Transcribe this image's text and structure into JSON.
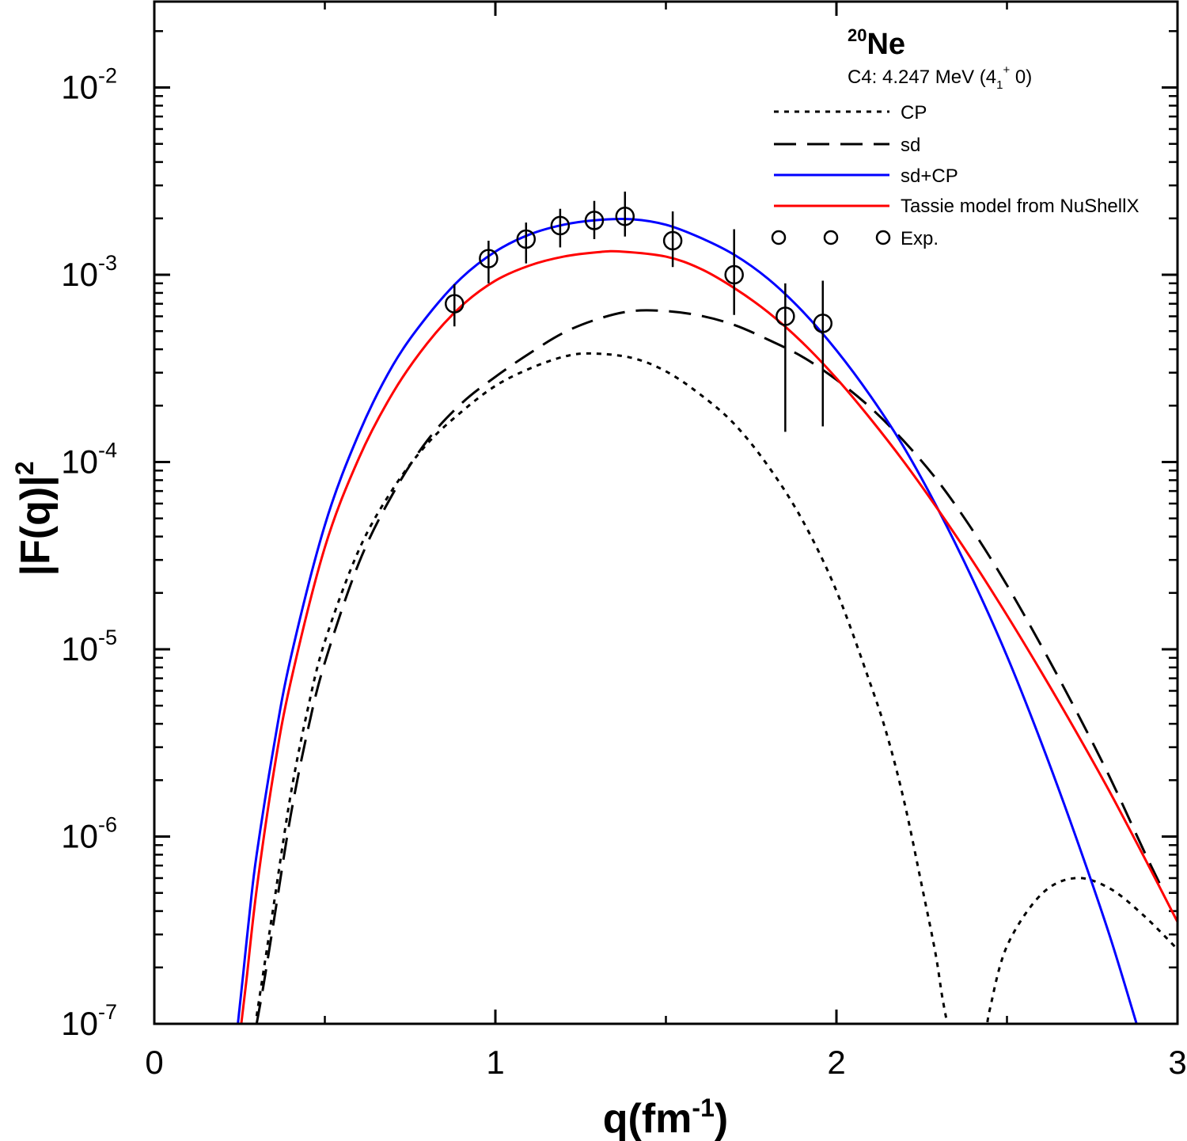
{
  "chart_data": {
    "type": "line",
    "title_nucleus": {
      "mass": "20",
      "symbol": "Ne"
    },
    "subtitle": {
      "prefix": "C4:  4.247 MeV (4",
      "sub": "1",
      "sup": "+",
      "suffix": " 0)"
    },
    "xlabel": {
      "main": "q(fm",
      "sup": "-1",
      "close": ")"
    },
    "ylabel": {
      "main": "|F(q)|",
      "sup": "2"
    },
    "xlim": [
      0,
      3
    ],
    "ylim": [
      1e-07,
      0.03
    ],
    "yscale": "log",
    "xticks": [
      {
        "value": 0,
        "label": "0"
      },
      {
        "value": 1,
        "label": "1"
      },
      {
        "value": 2,
        "label": "2"
      },
      {
        "value": 3,
        "label": "3"
      }
    ],
    "yticks": [
      {
        "exp": -7,
        "base": "10",
        "sup": "-7"
      },
      {
        "exp": -6,
        "base": "10",
        "sup": "-6"
      },
      {
        "exp": -5,
        "base": "10",
        "sup": "-5"
      },
      {
        "exp": -4,
        "base": "10",
        "sup": "-4"
      },
      {
        "exp": -3,
        "base": "10",
        "sup": "-3"
      },
      {
        "exp": -2,
        "base": "10",
        "sup": "-2"
      }
    ],
    "legend_position": "top-right",
    "series": [
      {
        "name": "CP",
        "color": "#000000",
        "style": "dotted",
        "segment_ranges": [
          [
            0.3,
            2.33
          ],
          [
            2.44,
            3.0
          ]
        ],
        "points": [
          [
            0.3,
            1.1e-07
          ],
          [
            0.32,
            1.9e-07
          ],
          [
            0.35,
            4.3e-07
          ],
          [
            0.4,
            1.68e-06
          ],
          [
            0.45,
            4.8e-06
          ],
          [
            0.5,
            1.1e-05
          ],
          [
            0.6,
            3.4e-05
          ],
          [
            0.7,
            7.2e-05
          ],
          [
            0.8,
            0.000125
          ],
          [
            0.9,
            0.000185
          ],
          [
            1.0,
            0.000255
          ],
          [
            1.1,
            0.000315
          ],
          [
            1.2,
            0.000365
          ],
          [
            1.28,
            0.00038
          ],
          [
            1.4,
            0.00036
          ],
          [
            1.5,
            0.000305
          ],
          [
            1.6,
            0.00023
          ],
          [
            1.7,
            0.00016
          ],
          [
            1.8,
            9.5e-05
          ],
          [
            1.9,
            4.9e-05
          ],
          [
            2.0,
            2.05e-05
          ],
          [
            2.1,
            6.5e-06
          ],
          [
            2.15,
            3.4e-06
          ],
          [
            2.2,
            1.5e-06
          ],
          [
            2.25,
            5.5e-07
          ],
          [
            2.29,
            2.4e-07
          ],
          [
            2.31,
            1.4e-07
          ],
          [
            2.33,
            9e-08
          ],
          [
            2.44,
            9e-08
          ],
          [
            2.45,
            1.2e-07
          ],
          [
            2.5,
            2.6e-07
          ],
          [
            2.6,
            4.9e-07
          ],
          [
            2.7,
            6e-07
          ],
          [
            2.8,
            5.3e-07
          ],
          [
            2.9,
            3.8e-07
          ],
          [
            3.0,
            2.5e-07
          ]
        ]
      },
      {
        "name": "sd",
        "color": "#000000",
        "style": "dashed",
        "points": [
          [
            0.3,
            1e-07
          ],
          [
            0.32,
            1.6e-07
          ],
          [
            0.35,
            3.5e-07
          ],
          [
            0.4,
            1.3e-06
          ],
          [
            0.45,
            3.7e-06
          ],
          [
            0.5,
            8.5e-06
          ],
          [
            0.6,
            2.9e-05
          ],
          [
            0.7,
            6.8e-05
          ],
          [
            0.8,
            0.00013
          ],
          [
            0.9,
            0.000205
          ],
          [
            1.0,
            0.000285
          ],
          [
            1.1,
            0.00038
          ],
          [
            1.2,
            0.00049
          ],
          [
            1.3,
            0.00058
          ],
          [
            1.4,
            0.00064
          ],
          [
            1.5,
            0.00064
          ],
          [
            1.6,
            0.000605
          ],
          [
            1.7,
            0.00054
          ],
          [
            1.8,
            0.00045
          ],
          [
            1.9,
            0.000365
          ],
          [
            2.0,
            0.000275
          ],
          [
            2.1,
            0.000195
          ],
          [
            2.2,
            0.000128
          ],
          [
            2.3,
            7.8e-05
          ],
          [
            2.4,
            4.3e-05
          ],
          [
            2.5,
            2.2e-05
          ],
          [
            2.6,
            1.05e-05
          ],
          [
            2.7,
            4.8e-06
          ],
          [
            2.8,
            2.1e-06
          ],
          [
            2.9,
            8.5e-07
          ],
          [
            2.95,
            5.5e-07
          ]
        ]
      },
      {
        "name": "sd+CP",
        "color": "#0000ff",
        "style": "solid",
        "points": [
          [
            0.245,
            1e-07
          ],
          [
            0.26,
            1.8e-07
          ],
          [
            0.28,
            4e-07
          ],
          [
            0.3,
            8e-07
          ],
          [
            0.35,
            3e-06
          ],
          [
            0.4,
            9e-06
          ],
          [
            0.5,
            4.6e-05
          ],
          [
            0.6,
            0.000142
          ],
          [
            0.7,
            0.00033
          ],
          [
            0.8,
            0.0006
          ],
          [
            0.9,
            0.00096
          ],
          [
            1.0,
            0.00133
          ],
          [
            1.1,
            0.00164
          ],
          [
            1.2,
            0.00185
          ],
          [
            1.3,
            0.00196
          ],
          [
            1.4,
            0.00198
          ],
          [
            1.5,
            0.00185
          ],
          [
            1.6,
            0.00158
          ],
          [
            1.7,
            0.00128
          ],
          [
            1.8,
            0.00095
          ],
          [
            1.9,
            0.00064
          ],
          [
            2.0,
            0.000395
          ],
          [
            2.1,
            0.000225
          ],
          [
            2.2,
            0.000118
          ],
          [
            2.3,
            5.5e-05
          ],
          [
            2.4,
            2.35e-05
          ],
          [
            2.5,
            9.2e-06
          ],
          [
            2.6,
            3.2e-06
          ],
          [
            2.7,
            1.02e-06
          ],
          [
            2.8,
            3e-07
          ],
          [
            2.88,
            1e-07
          ]
        ]
      },
      {
        "name": "Tassie model from NuShellX",
        "color": "#ff0000",
        "style": "solid",
        "points": [
          [
            0.255,
            1e-07
          ],
          [
            0.27,
            1.7e-07
          ],
          [
            0.3,
            5.2e-07
          ],
          [
            0.35,
            2.2e-06
          ],
          [
            0.4,
            6.7e-06
          ],
          [
            0.5,
            3.5e-05
          ],
          [
            0.6,
            0.000105
          ],
          [
            0.7,
            0.000235
          ],
          [
            0.8,
            0.00043
          ],
          [
            0.9,
            0.00068
          ],
          [
            1.0,
            0.00093
          ],
          [
            1.1,
            0.00112
          ],
          [
            1.2,
            0.00125
          ],
          [
            1.3,
            0.00132
          ],
          [
            1.37,
            0.00133
          ],
          [
            1.5,
            0.00125
          ],
          [
            1.6,
            0.00108
          ],
          [
            1.7,
            0.00085
          ],
          [
            1.8,
            0.00063
          ],
          [
            1.9,
            0.000435
          ],
          [
            2.0,
            0.00028
          ],
          [
            2.1,
            0.00017
          ],
          [
            2.2,
            9.9e-05
          ],
          [
            2.3,
            5.5e-05
          ],
          [
            2.4,
            2.95e-05
          ],
          [
            2.5,
            1.52e-05
          ],
          [
            2.6,
            7.6e-06
          ],
          [
            2.7,
            3.7e-06
          ],
          [
            2.8,
            1.75e-06
          ],
          [
            2.9,
            7.9e-07
          ],
          [
            3.0,
            3.5e-07
          ]
        ]
      }
    ],
    "experimental": {
      "name": "Exp.",
      "color": "#000000",
      "marker": "open-circle",
      "points": [
        {
          "x": 0.88,
          "y": 0.0007,
          "ylo": 0.00053,
          "yhi": 0.00089
        },
        {
          "x": 0.98,
          "y": 0.00122,
          "ylo": 0.0009,
          "yhi": 0.00152
        },
        {
          "x": 1.09,
          "y": 0.00155,
          "ylo": 0.00115,
          "yhi": 0.0019
        },
        {
          "x": 1.19,
          "y": 0.00183,
          "ylo": 0.0014,
          "yhi": 0.00225
        },
        {
          "x": 1.29,
          "y": 0.00195,
          "ylo": 0.00155,
          "yhi": 0.00248
        },
        {
          "x": 1.38,
          "y": 0.00205,
          "ylo": 0.0016,
          "yhi": 0.00278
        },
        {
          "x": 1.52,
          "y": 0.00152,
          "ylo": 0.0011,
          "yhi": 0.00218
        },
        {
          "x": 1.7,
          "y": 0.001,
          "ylo": 0.00061,
          "yhi": 0.00175
        },
        {
          "x": 1.85,
          "y": 0.0006,
          "ylo": 0.000145,
          "yhi": 0.0009
        },
        {
          "x": 1.96,
          "y": 0.00055,
          "ylo": 0.000155,
          "yhi": 0.00093
        }
      ]
    }
  }
}
